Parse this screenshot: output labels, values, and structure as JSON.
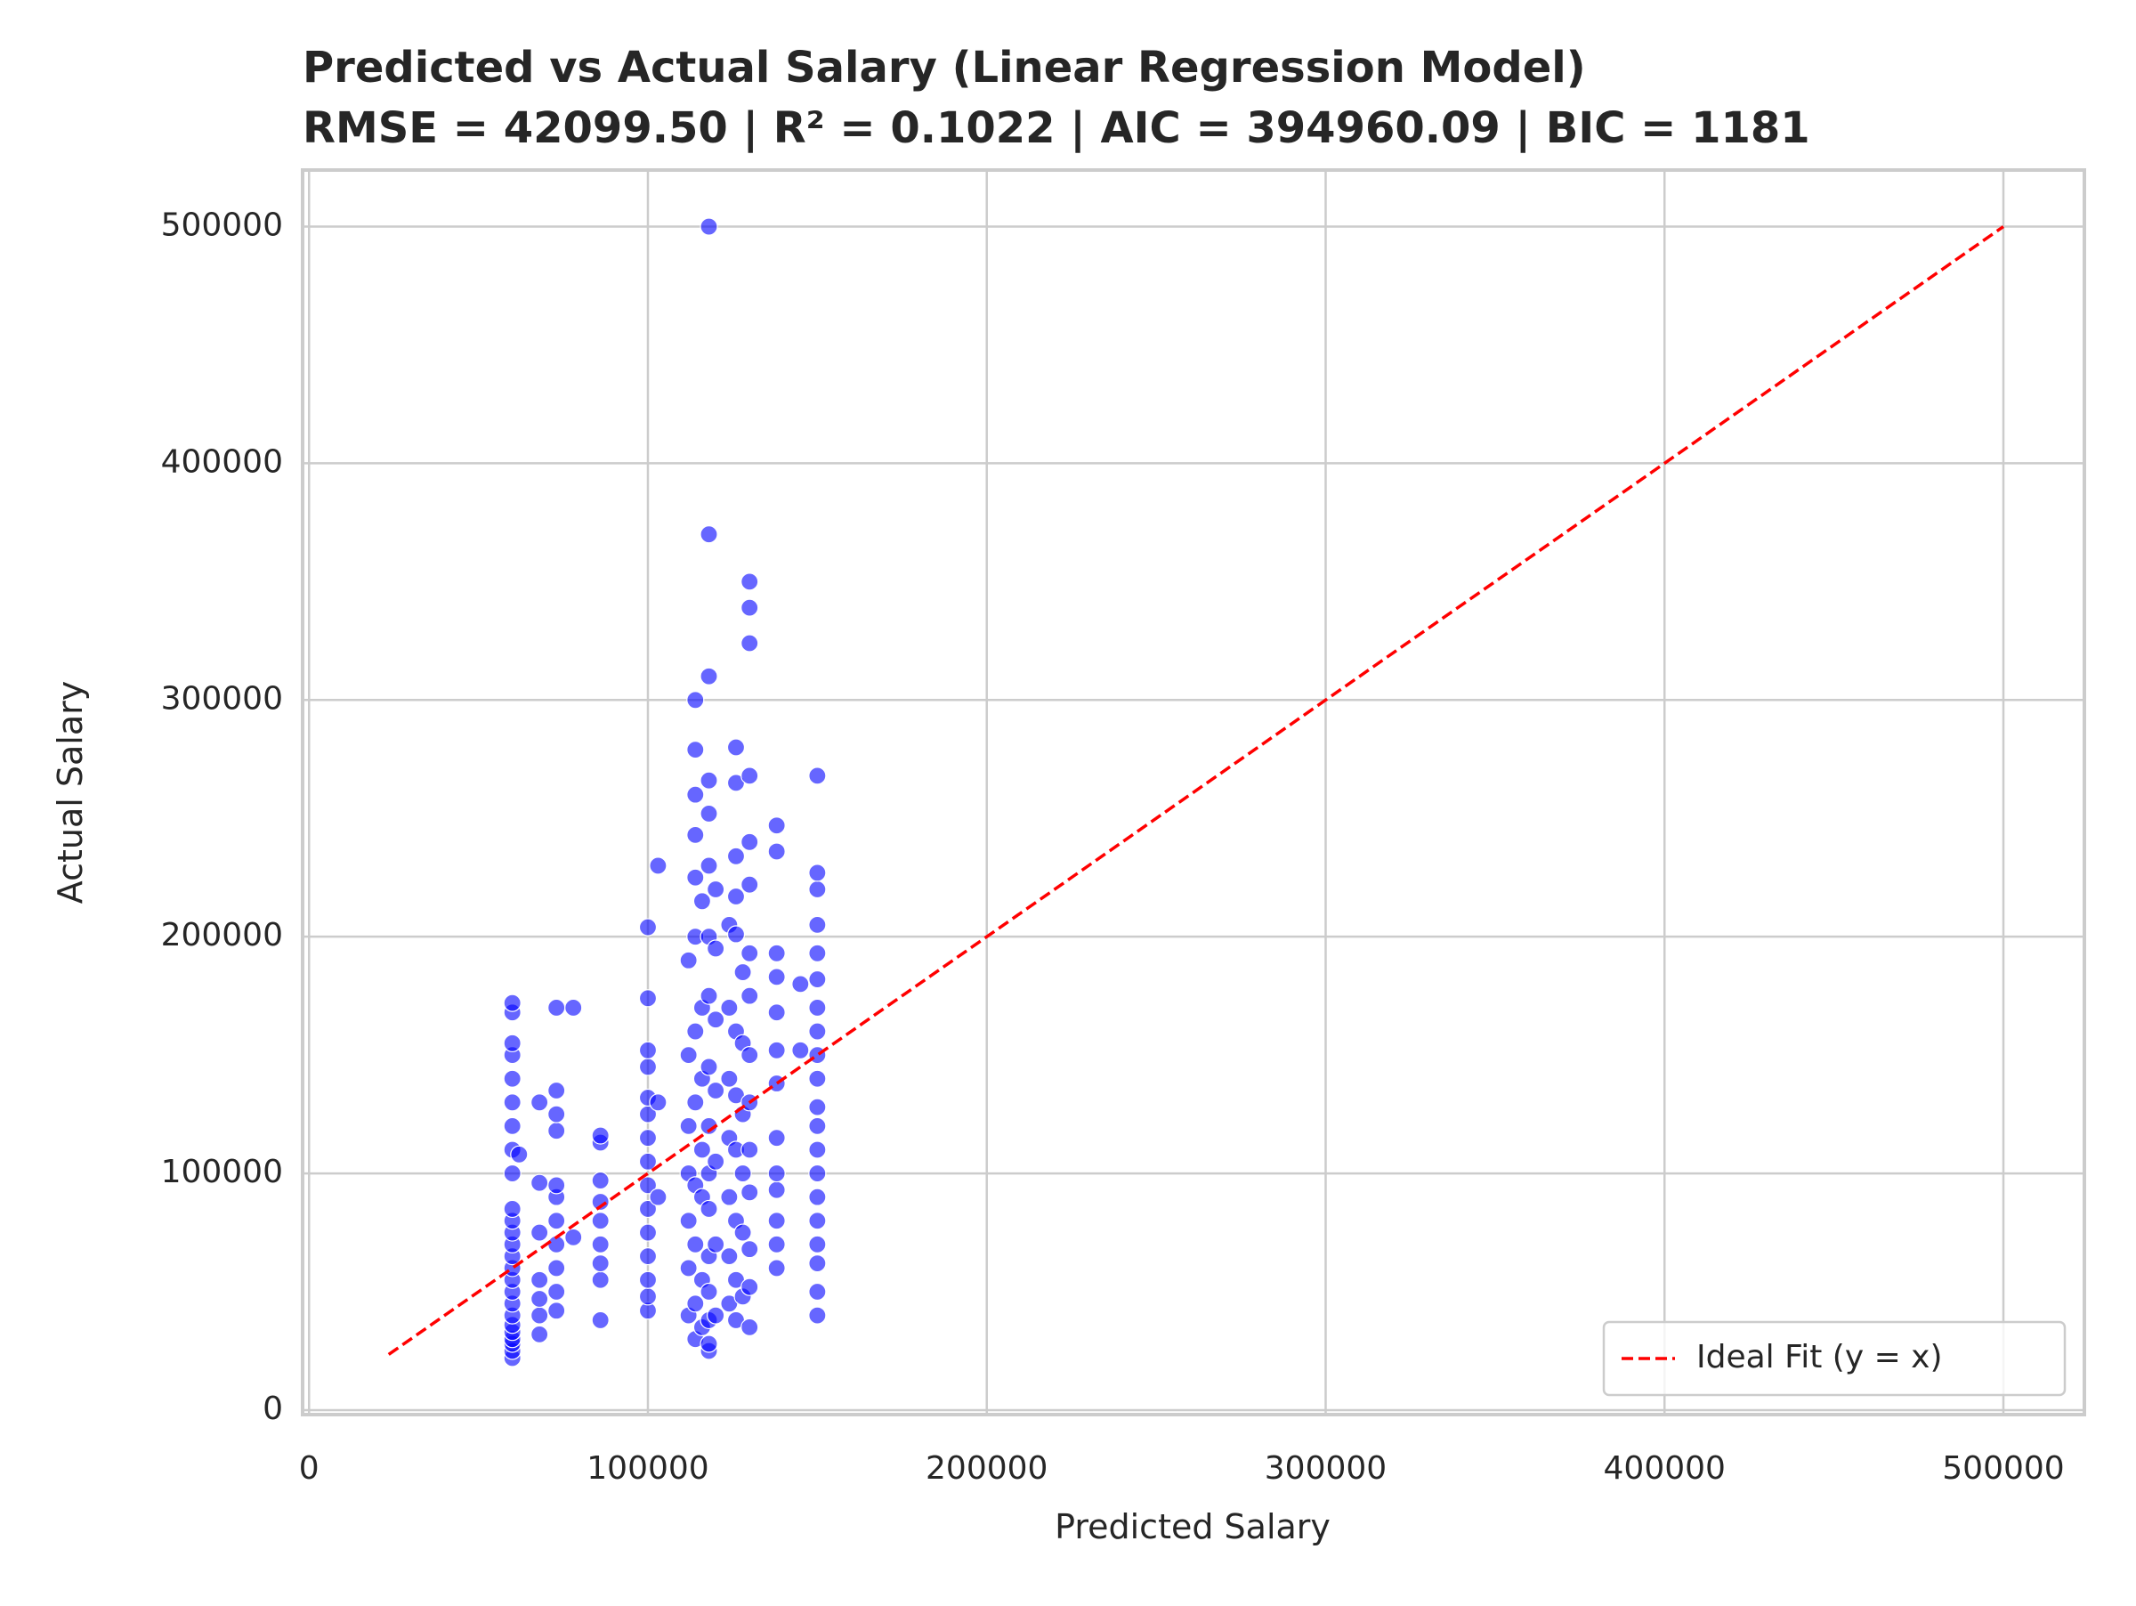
{
  "chart_data": {
    "type": "scatter",
    "title": "Predicted vs Actual Salary (Linear Regression Model)",
    "subtitle": "RMSE = 42099.50 | R² = 0.1022 | AIC = 394960.09 | BIC = 1181",
    "xlabel": "Predicted Salary",
    "ylabel": "Actual Salary",
    "xlim": [
      -1900,
      523900
    ],
    "ylim": [
      -1900,
      523900
    ],
    "xticks": [
      0,
      100000,
      200000,
      300000,
      400000,
      500000
    ],
    "yticks": [
      0,
      100000,
      200000,
      300000,
      400000,
      500000
    ],
    "grid": true,
    "legend": "lower right",
    "series": [
      {
        "type": "scatter",
        "color": "blue",
        "x": [
          60000,
          60000,
          60000,
          60000,
          60000,
          60000,
          60000,
          60000,
          60000,
          60000,
          60000,
          60000,
          60000,
          60000,
          60000,
          60000,
          60000,
          60000,
          60000,
          60000,
          60000,
          60000,
          60000,
          60000,
          60000,
          62000,
          68000,
          68000,
          68000,
          68000,
          68000,
          68000,
          68000,
          73000,
          73000,
          73000,
          73000,
          73000,
          73000,
          73000,
          73000,
          73000,
          73000,
          73000,
          78000,
          78000,
          86000,
          86000,
          86000,
          86000,
          86000,
          86000,
          86000,
          86000,
          86000,
          100000,
          100000,
          100000,
          100000,
          100000,
          100000,
          100000,
          100000,
          100000,
          100000,
          100000,
          100000,
          100000,
          100000,
          100000,
          103000,
          103000,
          103000,
          112000,
          112000,
          112000,
          112000,
          112000,
          112000,
          112000,
          114000,
          114000,
          114000,
          114000,
          114000,
          114000,
          114000,
          114000,
          114000,
          114000,
          114000,
          114000,
          116000,
          116000,
          116000,
          116000,
          116000,
          116000,
          116000,
          118000,
          118000,
          118000,
          118000,
          118000,
          118000,
          118000,
          118000,
          118000,
          118000,
          118000,
          118000,
          118000,
          118000,
          118000,
          118000,
          118000,
          120000,
          120000,
          120000,
          120000,
          120000,
          120000,
          120000,
          124000,
          124000,
          124000,
          124000,
          124000,
          124000,
          124000,
          126000,
          126000,
          126000,
          126000,
          126000,
          126000,
          126000,
          126000,
          126000,
          126000,
          126000,
          128000,
          128000,
          128000,
          128000,
          128000,
          128000,
          130000,
          130000,
          130000,
          130000,
          130000,
          130000,
          130000,
          130000,
          130000,
          130000,
          130000,
          130000,
          130000,
          130000,
          130000,
          138000,
          138000,
          138000,
          138000,
          138000,
          138000,
          138000,
          138000,
          138000,
          138000,
          138000,
          138000,
          138000,
          145000,
          145000,
          150000,
          150000,
          150000,
          150000,
          150000,
          150000,
          150000,
          150000,
          150000,
          150000,
          150000,
          150000,
          150000,
          150000,
          150000,
          150000,
          150000,
          150000,
          150000,
          150000
        ],
        "y": [
          22000,
          25000,
          28000,
          30000,
          33000,
          36000,
          40000,
          45000,
          50000,
          55000,
          60000,
          65000,
          70000,
          75000,
          80000,
          85000,
          100000,
          110000,
          120000,
          130000,
          140000,
          150000,
          155000,
          168000,
          172000,
          108000,
          32000,
          40000,
          47000,
          55000,
          75000,
          96000,
          130000,
          42000,
          50000,
          60000,
          70000,
          80000,
          90000,
          95000,
          118000,
          125000,
          135000,
          170000,
          170000,
          73000,
          38000,
          55000,
          62000,
          70000,
          80000,
          88000,
          97000,
          113000,
          116000,
          42000,
          48000,
          55000,
          65000,
          75000,
          85000,
          95000,
          105000,
          115000,
          125000,
          132000,
          145000,
          152000,
          174000,
          204000,
          90000,
          130000,
          230000,
          40000,
          60000,
          80000,
          100000,
          120000,
          150000,
          190000,
          30000,
          45000,
          70000,
          95000,
          130000,
          160000,
          200000,
          225000,
          243000,
          260000,
          279000,
          300000,
          35000,
          55000,
          90000,
          110000,
          140000,
          170000,
          215000,
          25000,
          28000,
          38000,
          50000,
          65000,
          85000,
          100000,
          120000,
          145000,
          175000,
          200000,
          230000,
          252000,
          266000,
          310000,
          370000,
          500000,
          40000,
          70000,
          105000,
          135000,
          165000,
          195000,
          220000,
          45000,
          65000,
          90000,
          115000,
          140000,
          170000,
          205000,
          38000,
          55000,
          80000,
          110000,
          133000,
          160000,
          201000,
          217000,
          234000,
          265000,
          280000,
          48000,
          75000,
          100000,
          125000,
          155000,
          185000,
          35000,
          52000,
          68000,
          92000,
          110000,
          130000,
          150000,
          175000,
          193000,
          222000,
          240000,
          268000,
          324000,
          339000,
          350000,
          60000,
          70000,
          80000,
          93000,
          100000,
          115000,
          138000,
          152000,
          168000,
          183000,
          193000,
          236000,
          247000,
          152000,
          180000,
          40000,
          50000,
          62000,
          70000,
          80000,
          90000,
          100000,
          110000,
          120000,
          128000,
          140000,
          150000,
          160000,
          170000,
          182000,
          193000,
          205000,
          220000,
          227000,
          268000
        ]
      },
      {
        "type": "line",
        "name": "Ideal Fit (y = x)",
        "color": "red",
        "dash": true,
        "x": [
          23500,
          500000
        ],
        "y": [
          23500,
          500000
        ]
      }
    ]
  }
}
